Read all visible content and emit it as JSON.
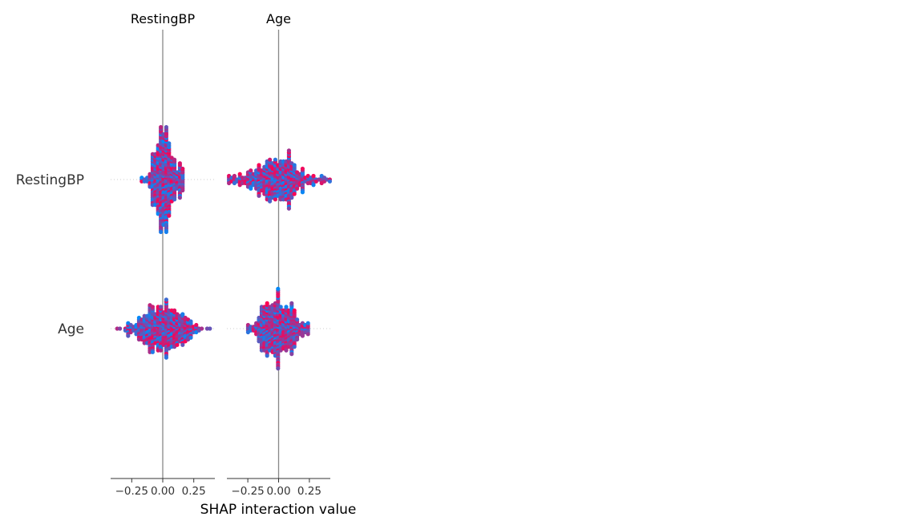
{
  "chart_data": {
    "type": "scatter",
    "subtype": "shap-interaction-beeswarm-matrix",
    "xlabel": "SHAP interaction value",
    "features": [
      "RestingBP",
      "Age"
    ],
    "columns": [
      "RestingBP",
      "Age"
    ],
    "xlim": [
      -0.42,
      0.42
    ],
    "x_ticks": [
      -0.25,
      0.0,
      0.25
    ],
    "x_tick_labels": [
      "−0.25",
      "0.00",
      "0.25"
    ],
    "color_low": "#008bfb",
    "color_high": "#ff0052",
    "panels": [
      {
        "row": "RestingBP",
        "column": "RestingBP",
        "center": 0.01,
        "spread": 0.07,
        "min": -0.16,
        "max": 0.17,
        "vertical_extent": 0.55
      },
      {
        "row": "RestingBP",
        "column": "Age",
        "center": 0.0,
        "spread": 0.17,
        "min": -0.41,
        "max": 0.42,
        "vertical_extent": 0.55
      },
      {
        "row": "Age",
        "column": "RestingBP",
        "center": 0.0,
        "spread": 0.13,
        "min": -0.38,
        "max": 0.38,
        "vertical_extent": 0.55
      },
      {
        "row": "Age",
        "column": "Age",
        "center": -0.01,
        "spread": 0.1,
        "min": -0.25,
        "max": 0.25,
        "vertical_extent": 0.55
      }
    ]
  }
}
